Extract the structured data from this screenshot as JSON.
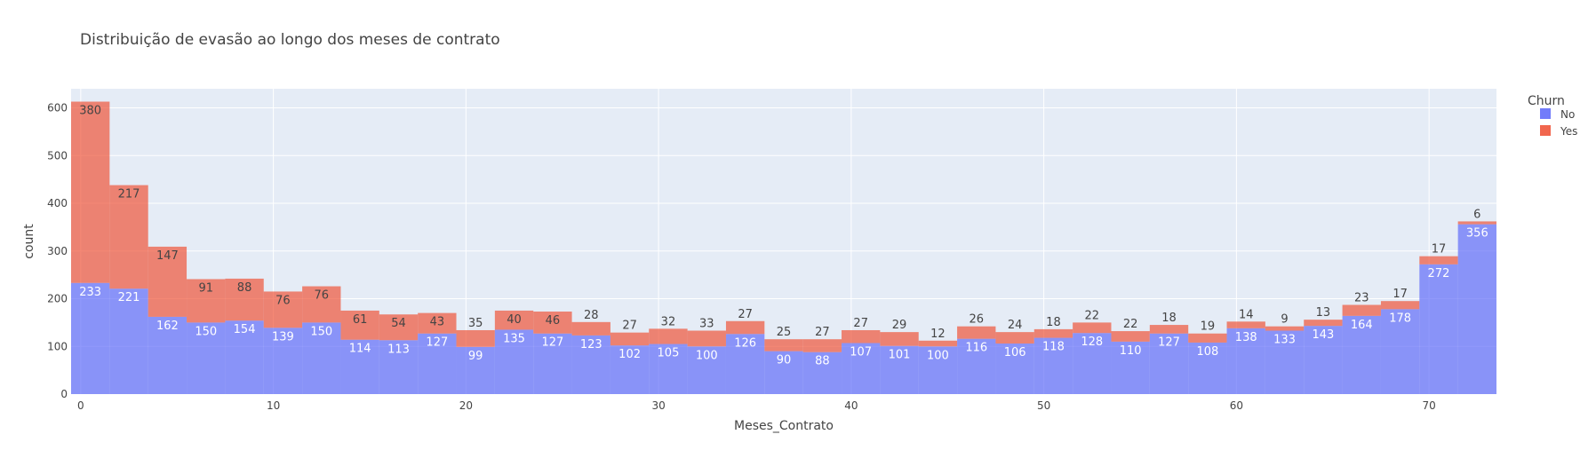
{
  "chart_data": {
    "type": "bar",
    "barmode": "stack",
    "title": "Distribuição de evasão ao longo dos meses de contrato",
    "xlabel": "Meses_Contrato",
    "ylabel": "count",
    "xlim": [
      -0.5,
      73.5
    ],
    "ylim": [
      0,
      640
    ],
    "xticks": [
      0,
      10,
      20,
      30,
      40,
      50,
      60,
      70
    ],
    "yticks": [
      0,
      100,
      200,
      300,
      400,
      500,
      600
    ],
    "grid": true,
    "bin_width": 2,
    "bin_start": -0.5,
    "bins": [
      0,
      2,
      4,
      6,
      8,
      10,
      12,
      14,
      16,
      18,
      20,
      22,
      24,
      26,
      28,
      30,
      32,
      34,
      36,
      38,
      40,
      42,
      44,
      46,
      48,
      50,
      52,
      54,
      56,
      58,
      60,
      62,
      64,
      66,
      68,
      70,
      72
    ],
    "legend": {
      "title": "Churn",
      "position": "right"
    },
    "series": [
      {
        "name": "No",
        "color": "#636efa",
        "values": [
          233,
          221,
          162,
          150,
          154,
          139,
          150,
          114,
          113,
          127,
          99,
          135,
          127,
          123,
          102,
          105,
          100,
          126,
          90,
          88,
          107,
          101,
          100,
          116,
          106,
          118,
          128,
          110,
          127,
          108,
          138,
          133,
          143,
          164,
          178,
          272,
          356
        ]
      },
      {
        "name": "Yes",
        "color": "#ef553b",
        "values": [
          380,
          217,
          147,
          91,
          88,
          76,
          76,
          61,
          54,
          43,
          35,
          40,
          46,
          28,
          27,
          32,
          33,
          27,
          25,
          27,
          27,
          29,
          12,
          26,
          24,
          18,
          22,
          22,
          18,
          19,
          14,
          9,
          13,
          23,
          17,
          17,
          6
        ]
      }
    ]
  }
}
